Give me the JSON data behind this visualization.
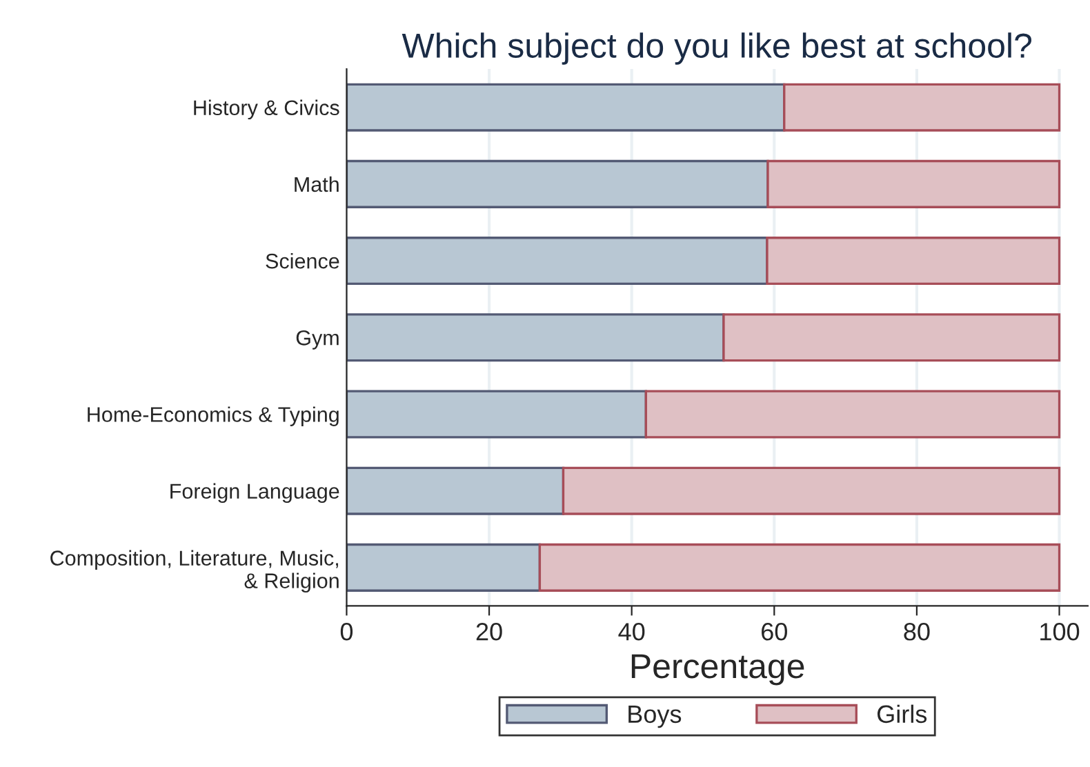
{
  "chart_data": {
    "type": "bar",
    "orientation": "horizontal",
    "stacked": true,
    "title": "Which subject do you like best at school?",
    "xlabel": "Percentage",
    "categories": [
      "History & Civics",
      "Math",
      "Science",
      "Gym",
      "Home-Economics & Typing",
      "Foreign Language",
      "Composition, Literature, Music,\n& Religion"
    ],
    "series": [
      {
        "name": "Boys",
        "color": "#b8c7d3",
        "values": [
          61.4,
          59.1,
          59.0,
          52.9,
          42.0,
          30.4,
          27.1
        ]
      },
      {
        "name": "Girls",
        "color": "#dfc0c4",
        "values": [
          38.6,
          40.9,
          41.0,
          47.1,
          58.0,
          69.6,
          72.9
        ]
      }
    ],
    "xlim": [
      0,
      104
    ],
    "xticks": [
      0,
      20,
      40,
      60,
      80,
      100
    ],
    "grid": "x",
    "legend": "bottom"
  }
}
